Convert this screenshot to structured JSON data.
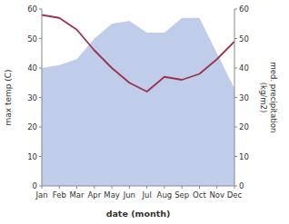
{
  "chart_data": {
    "type": "area",
    "categories": [
      "Jan",
      "Feb",
      "Mar",
      "Apr",
      "May",
      "Jun",
      "Jul",
      "Aug",
      "Sep",
      "Oct",
      "Nov",
      "Dec"
    ],
    "series": [
      {
        "type": "area",
        "color": "#b8c8e8",
        "values": [
          40,
          41,
          43,
          50,
          55,
          56,
          52,
          52,
          57,
          57,
          45,
          33
        ]
      },
      {
        "type": "line",
        "color": "#99334d",
        "axis": "y2",
        "values": [
          58,
          57,
          53,
          46,
          40,
          35,
          32,
          37,
          36,
          38,
          43,
          49
        ]
      }
    ],
    "xlabel": "date (month)",
    "ylabel": "max temp (C)",
    "y2label": "med. precipitation\n(kg/m2)",
    "ylim": [
      0,
      60
    ],
    "yticks": [
      0,
      10,
      20,
      30,
      40,
      50,
      60
    ],
    "y2lim": [
      0,
      60
    ],
    "y2ticks": [
      0,
      10,
      20,
      30,
      40,
      50,
      60
    ],
    "grid": false
  }
}
